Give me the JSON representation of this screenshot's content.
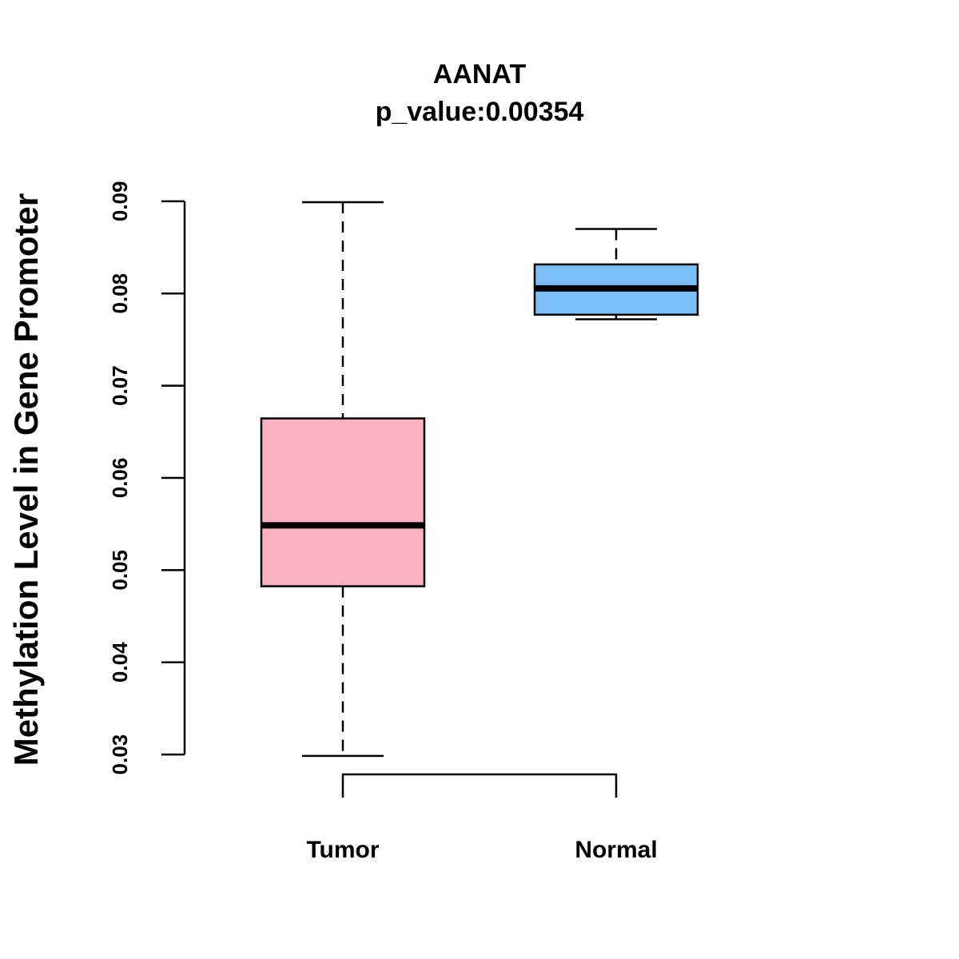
{
  "chart_data": {
    "type": "boxplot",
    "title": "AANAT",
    "subtitle": "p_value:0.00354",
    "xlabel": "",
    "ylabel": "Methylation Level in Gene Promoter",
    "ylim": [
      0.0275,
      0.0925
    ],
    "yticks": [
      0.03,
      0.04,
      0.05,
      0.06,
      0.07,
      0.08,
      0.09
    ],
    "ytick_labels": [
      "0.03",
      "0.04",
      "0.05",
      "0.06",
      "0.07",
      "0.08",
      "0.09"
    ],
    "groups": [
      {
        "name": "Tumor",
        "color": "#FBB1C3",
        "min": 0.02985,
        "q1": 0.04825,
        "median": 0.05485,
        "q3": 0.06645,
        "max": 0.0899
      },
      {
        "name": "Normal",
        "color": "#79C0F7",
        "min": 0.0772,
        "q1": 0.0777,
        "median": 0.08055,
        "q3": 0.08315,
        "max": 0.087
      }
    ],
    "significance_bracket": {
      "from": "Tumor",
      "to": "Normal"
    }
  }
}
